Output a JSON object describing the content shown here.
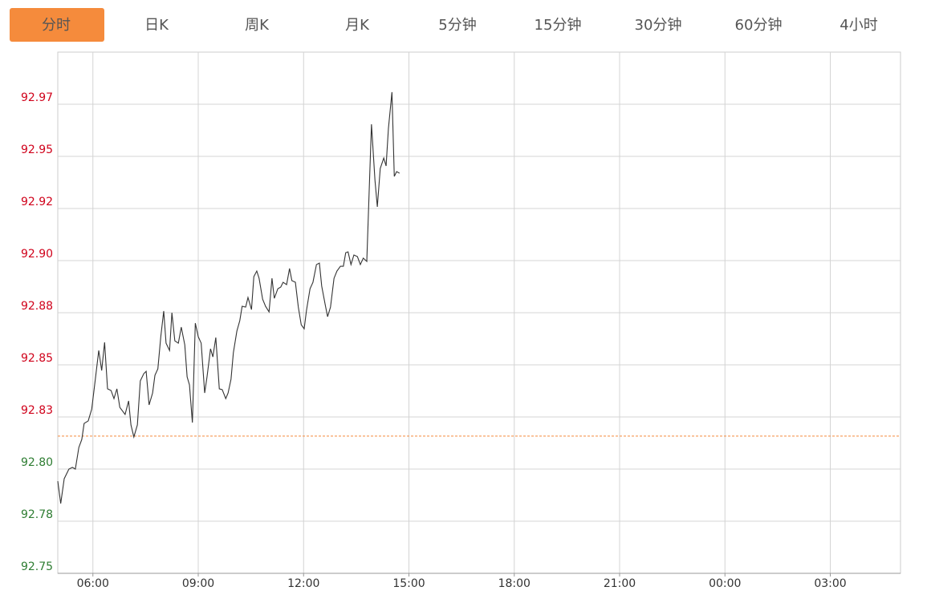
{
  "tabs": [
    "分时",
    "日K",
    "周K",
    "月K",
    "5分钟",
    "15分钟",
    "30分钟",
    "60分钟",
    "4小时"
  ],
  "active_tab": 0,
  "chart_data": {
    "type": "line",
    "x": [
      0,
      5,
      11,
      19,
      25,
      30,
      36,
      41,
      45,
      52,
      58,
      63,
      70,
      75,
      80,
      85,
      91,
      96,
      101,
      106,
      111,
      115,
      121,
      125,
      130,
      136,
      141,
      147,
      151,
      156,
      162,
      166,
      171,
      176,
      181,
      185,
      191,
      195,
      200,
      206,
      211,
      217,
      221,
      225,
      230,
      235,
      240,
      245,
      251,
      255,
      261,
      265,
      270,
      276,
      281,
      287,
      291,
      296,
      300,
      306,
      311,
      315,
      321,
      325,
      331,
      335,
      340,
      344,
      350,
      355,
      361,
      366,
      370,
      376,
      381,
      385,
      391,
      396,
      400,
      406,
      411,
      416,
      421,
      425,
      431,
      436,
      442,
      447,
      451,
      457,
      461,
      466,
      472,
      477,
      483,
      488,
      492,
      496,
      501,
      506,
      512,
      517,
      522,
      528,
      532,
      536,
      542,
      546,
      551,
      557,
      561,
      565,
      571,
      575,
      579,
      584
    ],
    "series": [
      {
        "color": "#333333",
        "values": [
          92.7942,
          92.7835,
          92.7954,
          92.8,
          92.8008,
          92.8,
          92.8104,
          92.8142,
          92.8219,
          92.8231,
          92.8288,
          92.8404,
          92.8569,
          92.8473,
          92.8608,
          92.8385,
          92.8377,
          92.8338,
          92.8385,
          92.8296,
          92.8277,
          92.8262,
          92.8327,
          92.8212,
          92.8154,
          92.8212,
          92.8423,
          92.8458,
          92.8469,
          92.8308,
          92.8365,
          92.845,
          92.8481,
          92.8635,
          92.8758,
          92.8604,
          92.8569,
          92.875,
          92.8615,
          92.8604,
          92.8681,
          92.8596,
          92.8442,
          92.8404,
          92.8223,
          92.87,
          92.8635,
          92.8604,
          92.8365,
          92.8442,
          92.8577,
          92.8538,
          92.8631,
          92.8385,
          92.8381,
          92.8338,
          92.8365,
          92.8431,
          92.8558,
          92.8662,
          92.8712,
          92.8781,
          92.8777,
          92.8823,
          92.8765,
          92.8923,
          92.895,
          92.8915,
          92.8815,
          92.8781,
          92.8754,
          92.8915,
          92.8819,
          92.8865,
          92.8873,
          92.8896,
          92.8885,
          92.8962,
          92.8904,
          92.8896,
          92.8777,
          92.8692,
          92.8673,
          92.8762,
          92.8865,
          92.8896,
          92.8981,
          92.8988,
          92.8877,
          92.8788,
          92.8731,
          92.8777,
          92.8915,
          92.895,
          92.8973,
          92.8973,
          92.9038,
          92.9042,
          92.8981,
          92.9027,
          92.9019,
          92.8981,
          92.9012,
          92.8996,
          92.9327,
          92.9654,
          92.9385,
          92.9258,
          92.9442,
          92.9492,
          92.9454,
          92.9635,
          92.9808,
          92.9404,
          92.9427,
          92.9419
        ]
      }
    ],
    "prev_close": 92.8158,
    "prev_close_color": "#f58b3c",
    "up_color": "#d0021b",
    "down_color": "#2e7d32",
    "grid": true,
    "xlim": [
      0,
      1440
    ],
    "xticks": [
      {
        "value": 60,
        "label": "06:00"
      },
      {
        "value": 240,
        "label": "09:00"
      },
      {
        "value": 420,
        "label": "12:00"
      },
      {
        "value": 600,
        "label": "15:00"
      },
      {
        "value": 780,
        "label": "18:00"
      },
      {
        "value": 960,
        "label": "21:00"
      },
      {
        "value": 1140,
        "label": "00:00"
      },
      {
        "value": 1320,
        "label": "03:00"
      }
    ],
    "ylim": [
      92.75,
      93.0
    ],
    "yticks": [
      92.75,
      {
        "value": 92.775,
        "label": "92.78"
      },
      {
        "value": 92.8,
        "label": "92.80"
      },
      {
        "value": 92.825,
        "label": "92.83"
      },
      92.85,
      {
        "value": 92.875,
        "label": "92.88"
      },
      {
        "value": 92.9,
        "label": "92.90"
      },
      {
        "value": 92.925,
        "label": "92.92"
      },
      92.95,
      {
        "value": 92.975,
        "label": "92.97"
      }
    ]
  }
}
